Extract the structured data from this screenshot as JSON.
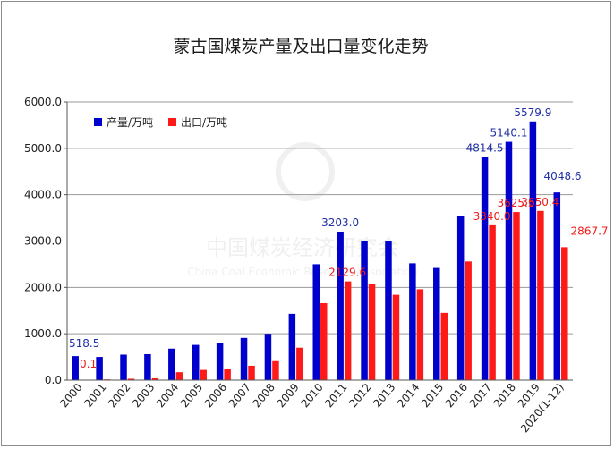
{
  "chart_data": {
    "type": "bar",
    "title": "蒙古国煤炭产量及出口量变化走势",
    "categories": [
      "2000",
      "2001",
      "2002",
      "2003",
      "2004",
      "2005",
      "2006",
      "2007",
      "2008",
      "2009",
      "2010",
      "2011",
      "2012",
      "2013",
      "2014",
      "2015",
      "2016",
      "2017",
      "2018",
      "2019",
      "2020(1-12)"
    ],
    "series": [
      {
        "name": "产量/万吨",
        "color": "#0000cc",
        "values": [
          518.5,
          500,
          550,
          560,
          680,
          760,
          800,
          910,
          1000,
          1430,
          2500,
          3203.0,
          3000,
          3000,
          2520,
          2420,
          3550,
          4814.5,
          5140.1,
          5579.9,
          4048.6
        ]
      },
      {
        "name": "出口/万吨",
        "color": "#ff1a1a",
        "values": [
          0.1,
          15,
          30,
          40,
          170,
          220,
          240,
          310,
          410,
          700,
          1660,
          2129.6,
          2080,
          1840,
          1960,
          1450,
          2560,
          3340.0,
          3625.5,
          3650.4,
          2867.7
        ]
      }
    ],
    "value_labels": {
      "产量/万吨": {
        "0": "518.5",
        "11": "3203.0",
        "17": "4814.5",
        "18": "5140.1",
        "19": "5579.9",
        "20": "4048.6"
      },
      "出口/万吨": {
        "0": "0.1",
        "11": "2129.6",
        "17": "3340.0",
        "18": "3625.5",
        "19": "3650.4",
        "20": "2867.7"
      }
    },
    "y_ticks": [
      "0.0",
      "1000.0",
      "2000.0",
      "3000.0",
      "4000.0",
      "5000.0",
      "6000.0"
    ],
    "ylim": [
      0,
      6000
    ],
    "grid": true,
    "legend_position": "top-left"
  },
  "watermark": {
    "cn": "中国煤炭经济研究会",
    "en": "China Coal Economic Research Association"
  }
}
